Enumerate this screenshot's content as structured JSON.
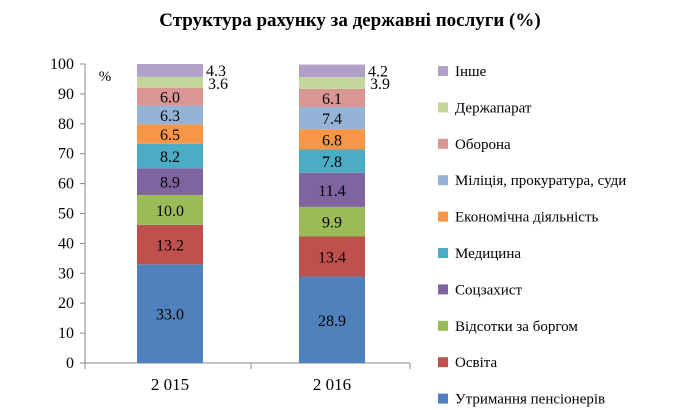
{
  "chart_data": {
    "type": "bar",
    "stacked": true,
    "title": "Структура рахунку за державні послуги (%)",
    "ylabel": "%",
    "ylim": [
      0,
      100
    ],
    "yticks": [
      0,
      10,
      20,
      30,
      40,
      50,
      60,
      70,
      80,
      90,
      100
    ],
    "grid": false,
    "legend_position": "right",
    "categories": [
      "2 015",
      "2 016"
    ],
    "series": [
      {
        "name": "Утримання пенсіонерів",
        "color": "#4F81BD",
        "values": [
          33.0,
          28.9
        ],
        "labels": [
          "33.0",
          "28.9"
        ]
      },
      {
        "name": "Освіта",
        "color": "#C0504D",
        "values": [
          13.2,
          13.4
        ],
        "labels": [
          "13.2",
          "13.4"
        ]
      },
      {
        "name": "Відсотки за боргом",
        "color": "#9BBB59",
        "values": [
          10.0,
          9.9
        ],
        "labels": [
          "10.0",
          "9.9"
        ]
      },
      {
        "name": "Соцзахист",
        "color": "#8064A2",
        "values": [
          8.9,
          11.4
        ],
        "labels": [
          "8.9",
          "11.4"
        ]
      },
      {
        "name": "Медицина",
        "color": "#4BACC6",
        "values": [
          8.2,
          7.8
        ],
        "labels": [
          "8.2",
          "7.8"
        ]
      },
      {
        "name": "Економічна діяльність",
        "color": "#F79646",
        "values": [
          6.5,
          6.8
        ],
        "labels": [
          "6.5",
          "6.8"
        ]
      },
      {
        "name": "Міліція, прокуратура, суди",
        "color": "#95B3D7",
        "values": [
          6.3,
          7.4
        ],
        "labels": [
          "6.3",
          "7.4"
        ]
      },
      {
        "name": "Оборона",
        "color": "#DA9694",
        "values": [
          6.0,
          6.1
        ],
        "labels": [
          "6.0",
          "6.1"
        ]
      },
      {
        "name": "Держапарат",
        "color": "#C4D79B",
        "values": [
          3.6,
          3.9
        ],
        "labels": [
          "3.6",
          "3.9"
        ]
      },
      {
        "name": "Інше",
        "color": "#B1A0C7",
        "values": [
          4.3,
          4.2
        ],
        "labels": [
          "4.3",
          "4.2"
        ]
      }
    ]
  }
}
